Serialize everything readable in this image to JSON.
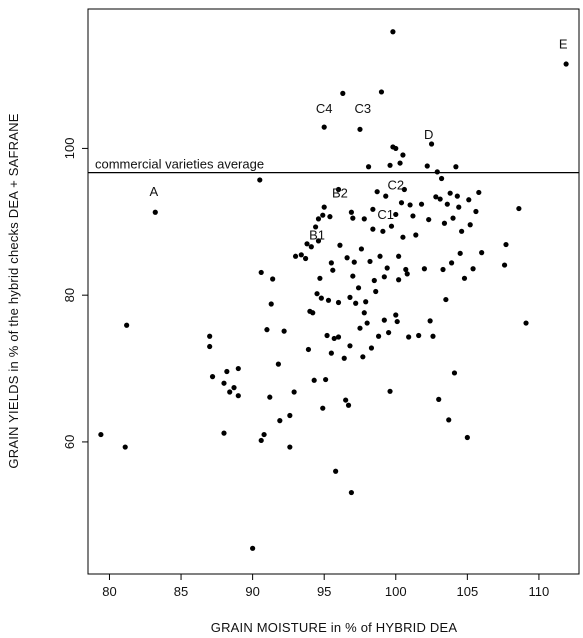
{
  "chart_data": {
    "type": "scatter",
    "title": "",
    "xlabel": "GRAIN MOISTURE in % of HYBRID DEA",
    "ylabel": "GRAIN YIELDS in % of the hybrid checks DEA + SAFRANE",
    "xlim": [
      78.5,
      112.8
    ],
    "ylim": [
      42,
      119
    ],
    "xticks": [
      80,
      85,
      90,
      95,
      100,
      105,
      110
    ],
    "yticks": [
      60,
      80,
      100
    ],
    "grid": false,
    "legend": "none",
    "reference_line": {
      "y": 96.7,
      "label": "commercial varieties average"
    },
    "annotations": [
      {
        "label": "A",
        "x": 83.1,
        "y": 93.5
      },
      {
        "label": "B1",
        "x": 94.5,
        "y": 87.6
      },
      {
        "label": "B2",
        "x": 96.1,
        "y": 93.3
      },
      {
        "label": "C1",
        "x": 99.3,
        "y": 90.4
      },
      {
        "label": "C2",
        "x": 100.0,
        "y": 94.4
      },
      {
        "label": "C3",
        "x": 97.7,
        "y": 104.8
      },
      {
        "label": "C4",
        "x": 95.0,
        "y": 104.8
      },
      {
        "label": "D",
        "x": 102.3,
        "y": 101.3
      },
      {
        "label": "E",
        "x": 111.7,
        "y": 113.6
      }
    ],
    "points": [
      [
        79.4,
        61
      ],
      [
        81.1,
        59.3
      ],
      [
        81.2,
        75.9
      ],
      [
        83.2,
        91.3
      ],
      [
        87.0,
        74.4
      ],
      [
        87.0,
        73.0
      ],
      [
        87.2,
        68.9
      ],
      [
        88.0,
        61.2
      ],
      [
        88.0,
        68.0
      ],
      [
        88.2,
        69.6
      ],
      [
        88.4,
        66.8
      ],
      [
        88.7,
        67.4
      ],
      [
        89.0,
        70.0
      ],
      [
        89.0,
        66.3
      ],
      [
        90.0,
        45.5
      ],
      [
        90.5,
        95.7
      ],
      [
        90.6,
        83.1
      ],
      [
        90.8,
        61.0
      ],
      [
        90.6,
        60.2
      ],
      [
        91.0,
        75.3
      ],
      [
        91.2,
        66.1
      ],
      [
        91.3,
        78.8
      ],
      [
        91.4,
        82.2
      ],
      [
        91.8,
        70.6
      ],
      [
        91.9,
        62.9
      ],
      [
        92.2,
        75.1
      ],
      [
        92.6,
        59.3
      ],
      [
        92.6,
        63.6
      ],
      [
        92.9,
        66.8
      ],
      [
        93.0,
        85.3
      ],
      [
        93.4,
        85.5
      ],
      [
        93.7,
        85.0
      ],
      [
        93.8,
        87.0
      ],
      [
        93.9,
        72.6
      ],
      [
        94.0,
        77.8
      ],
      [
        94.1,
        86.6
      ],
      [
        94.2,
        77.6
      ],
      [
        94.3,
        68.4
      ],
      [
        94.4,
        89.3
      ],
      [
        94.5,
        80.2
      ],
      [
        94.6,
        90.4
      ],
      [
        94.6,
        87.4
      ],
      [
        94.7,
        82.3
      ],
      [
        94.8,
        79.6
      ],
      [
        94.9,
        90.9
      ],
      [
        94.9,
        64.6
      ],
      [
        95.0,
        102.9
      ],
      [
        95.0,
        92.0
      ],
      [
        95.1,
        68.5
      ],
      [
        95.2,
        74.5
      ],
      [
        95.3,
        79.3
      ],
      [
        95.4,
        90.7
      ],
      [
        95.5,
        72.1
      ],
      [
        95.5,
        84.4
      ],
      [
        95.6,
        83.4
      ],
      [
        95.7,
        74.1
      ],
      [
        95.8,
        56.0
      ],
      [
        96.0,
        94.4
      ],
      [
        96.0,
        79.0
      ],
      [
        96.0,
        74.3
      ],
      [
        96.1,
        86.8
      ],
      [
        96.3,
        107.5
      ],
      [
        96.4,
        71.4
      ],
      [
        96.5,
        65.7
      ],
      [
        96.6,
        85.1
      ],
      [
        96.7,
        65.0
      ],
      [
        96.8,
        73.1
      ],
      [
        96.8,
        79.7
      ],
      [
        96.9,
        91.3
      ],
      [
        96.9,
        53.1
      ],
      [
        97.0,
        90.5
      ],
      [
        97.0,
        82.6
      ],
      [
        97.1,
        84.5
      ],
      [
        97.2,
        78.9
      ],
      [
        97.4,
        81.0
      ],
      [
        97.5,
        102.6
      ],
      [
        97.5,
        75.5
      ],
      [
        97.6,
        86.3
      ],
      [
        97.7,
        71.6
      ],
      [
        97.8,
        90.4
      ],
      [
        97.8,
        77.6
      ],
      [
        97.9,
        79.1
      ],
      [
        98.0,
        76.2
      ],
      [
        98.1,
        97.5
      ],
      [
        98.2,
        84.6
      ],
      [
        98.3,
        72.8
      ],
      [
        98.4,
        91.7
      ],
      [
        98.4,
        89.0
      ],
      [
        98.5,
        82.0
      ],
      [
        98.6,
        80.5
      ],
      [
        98.7,
        94.1
      ],
      [
        98.8,
        74.4
      ],
      [
        98.9,
        85.3
      ],
      [
        99.0,
        107.7
      ],
      [
        99.1,
        88.7
      ],
      [
        99.2,
        82.5
      ],
      [
        99.2,
        76.6
      ],
      [
        99.3,
        93.5
      ],
      [
        99.4,
        83.7
      ],
      [
        99.5,
        74.9
      ],
      [
        99.6,
        66.9
      ],
      [
        99.6,
        97.7
      ],
      [
        99.7,
        89.4
      ],
      [
        99.8,
        115.9
      ],
      [
        99.8,
        100.2
      ],
      [
        100.0,
        100.0
      ],
      [
        100.0,
        91.0
      ],
      [
        100.0,
        77.3
      ],
      [
        100.1,
        76.4
      ],
      [
        100.2,
        85.3
      ],
      [
        100.2,
        82.1
      ],
      [
        100.3,
        98.0
      ],
      [
        100.4,
        92.6
      ],
      [
        100.5,
        99.1
      ],
      [
        100.5,
        87.9
      ],
      [
        100.6,
        94.4
      ],
      [
        100.7,
        83.5
      ],
      [
        100.8,
        82.9
      ],
      [
        100.9,
        74.3
      ],
      [
        101.0,
        92.3
      ],
      [
        101.2,
        90.8
      ],
      [
        101.4,
        88.2
      ],
      [
        101.6,
        74.5
      ],
      [
        101.8,
        92.4
      ],
      [
        102.0,
        83.6
      ],
      [
        102.2,
        97.6
      ],
      [
        102.3,
        90.3
      ],
      [
        102.4,
        76.5
      ],
      [
        102.5,
        100.6
      ],
      [
        102.6,
        74.4
      ],
      [
        102.8,
        93.4
      ],
      [
        102.9,
        96.8
      ],
      [
        103.0,
        65.8
      ],
      [
        103.1,
        93.1
      ],
      [
        103.2,
        95.9
      ],
      [
        103.3,
        83.5
      ],
      [
        103.4,
        89.8
      ],
      [
        103.5,
        79.4
      ],
      [
        103.6,
        92.4
      ],
      [
        103.7,
        63.0
      ],
      [
        103.8,
        93.9
      ],
      [
        103.9,
        84.4
      ],
      [
        104.0,
        90.5
      ],
      [
        104.1,
        69.4
      ],
      [
        104.2,
        97.5
      ],
      [
        104.3,
        93.5
      ],
      [
        104.4,
        92.0
      ],
      [
        104.5,
        85.7
      ],
      [
        104.6,
        88.7
      ],
      [
        104.8,
        82.3
      ],
      [
        105.0,
        60.6
      ],
      [
        105.1,
        93.0
      ],
      [
        105.2,
        89.6
      ],
      [
        105.4,
        83.6
      ],
      [
        105.6,
        91.4
      ],
      [
        105.8,
        94.0
      ],
      [
        106.0,
        85.8
      ],
      [
        107.6,
        84.1
      ],
      [
        107.7,
        86.9
      ],
      [
        108.6,
        91.8
      ],
      [
        109.1,
        76.2
      ],
      [
        111.9,
        111.5
      ]
    ]
  }
}
